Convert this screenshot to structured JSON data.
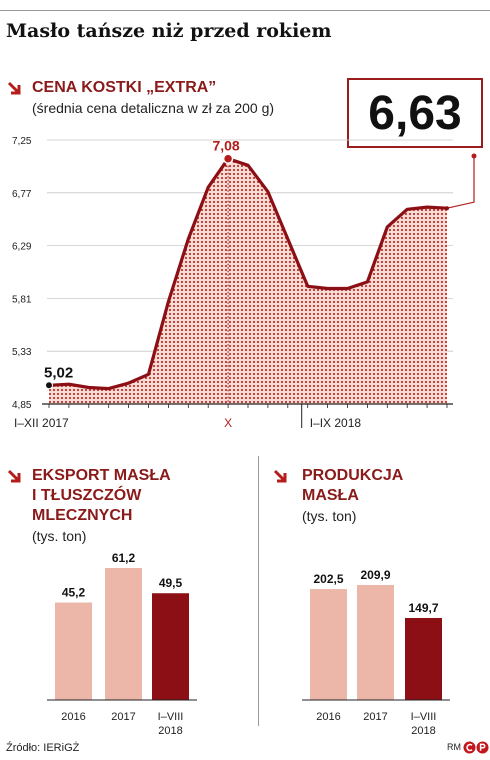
{
  "title": "Masło tańsze niż przed rokiem",
  "footer": {
    "source": "Źródło: IERiGŻ",
    "credit": "RM"
  },
  "colors": {
    "dark_red": "#8b0f14",
    "mid_red": "#b51c1c",
    "light_pink": "#ecb7a8",
    "title_red": "#8b1a1a"
  },
  "icons": {
    "section_arrow": "arrow-down-right-icon",
    "logo": "cp-logo-icon"
  },
  "chart_data": [
    {
      "type": "area",
      "title": "CENA KOSTKI „EXTRA”",
      "subtitle": "(średnia cena detaliczna w zł za 200 g)",
      "callout_value": "6,63",
      "y_ticks": [
        "7,25",
        "6,77",
        "6,29",
        "5,81",
        "5,33",
        "4,85"
      ],
      "ylim": [
        4.85,
        7.25
      ],
      "x_labels": [
        "I–XII 2017",
        "X",
        "I–IX 2018"
      ],
      "series": [
        {
          "values": [
            5.02,
            5.03,
            5.0,
            4.99,
            5.04,
            5.12,
            5.78,
            6.35,
            6.82,
            7.08,
            7.02,
            6.78,
            6.35,
            5.92,
            5.9,
            5.9,
            5.96,
            6.46,
            6.62,
            6.64,
            6.63
          ]
        }
      ],
      "annotations": [
        {
          "label": "5,02"
        },
        {
          "label": "7,08"
        }
      ]
    },
    {
      "type": "bar",
      "title_lines": [
        "EKSPORT MASŁA",
        "I TŁUSZCZÓW",
        "MLECZNYCH"
      ],
      "unit": "(tys. ton)",
      "categories": [
        "2016",
        "2017",
        "I–VIII 2018"
      ],
      "values": [
        45.2,
        61.2,
        49.5
      ],
      "value_labels": [
        "45,2",
        "61,2",
        "49,5"
      ],
      "colors": [
        "#ecb7a8",
        "#ecb7a8",
        "#8b0f14"
      ]
    },
    {
      "type": "bar",
      "title_lines": [
        "PRODUKCJA",
        "MASŁA"
      ],
      "unit": "(tys. ton)",
      "categories": [
        "2016",
        "2017",
        "I–VIII 2018"
      ],
      "values": [
        202.5,
        209.9,
        149.7
      ],
      "value_labels": [
        "202,5",
        "209,9",
        "149,7"
      ],
      "colors": [
        "#ecb7a8",
        "#ecb7a8",
        "#8b0f14"
      ]
    }
  ]
}
